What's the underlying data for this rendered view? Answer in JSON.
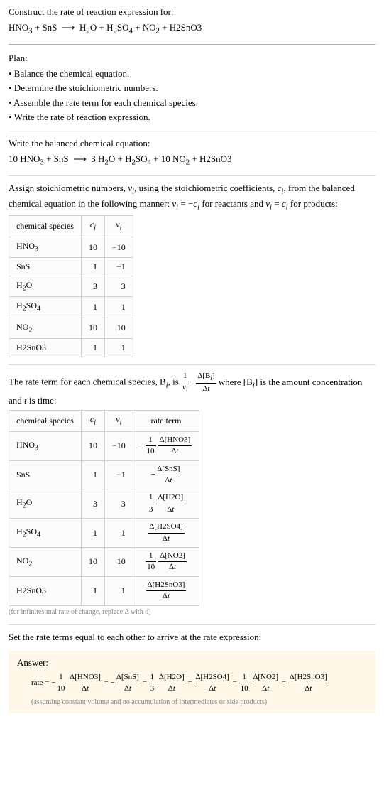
{
  "header": {
    "construct_label": "Construct the rate of reaction expression for:",
    "equation_html": "HNO<sub>3</sub> + SnS &nbsp;⟶&nbsp; H<sub>2</sub>O + H<sub>2</sub>SO<sub>4</sub> + NO<sub>2</sub> + H2SnO3"
  },
  "plan": {
    "title": "Plan:",
    "items": [
      "• Balance the chemical equation.",
      "• Determine the stoichiometric numbers.",
      "• Assemble the rate term for each chemical species.",
      "• Write the rate of reaction expression."
    ]
  },
  "balanced": {
    "title": "Write the balanced chemical equation:",
    "equation_html": "10 HNO<sub>3</sub> + SnS &nbsp;⟶&nbsp; 3 H<sub>2</sub>O + H<sub>2</sub>SO<sub>4</sub> + 10 NO<sub>2</sub> + H2SnO3"
  },
  "stoich": {
    "intro_html": "Assign stoichiometric numbers, <i>ν<sub>i</sub></i>, using the stoichiometric coefficients, <i>c<sub>i</sub></i>, from the balanced chemical equation in the following manner: <i>ν<sub>i</sub></i> = −<i>c<sub>i</sub></i> for reactants and <i>ν<sub>i</sub></i> = <i>c<sub>i</sub></i> for products:",
    "headers": {
      "species": "chemical species",
      "ci": "c<sub>i</sub>",
      "vi": "ν<sub>i</sub>"
    },
    "rows": [
      {
        "species_html": "HNO<sub>3</sub>",
        "ci": "10",
        "vi": "−10"
      },
      {
        "species_html": "SnS",
        "ci": "1",
        "vi": "−1"
      },
      {
        "species_html": "H<sub>2</sub>O",
        "ci": "3",
        "vi": "3"
      },
      {
        "species_html": "H<sub>2</sub>SO<sub>4</sub>",
        "ci": "1",
        "vi": "1"
      },
      {
        "species_html": "NO<sub>2</sub>",
        "ci": "10",
        "vi": "10"
      },
      {
        "species_html": "H2SnO3",
        "ci": "1",
        "vi": "1"
      }
    ]
  },
  "rateterm": {
    "intro_pre": "The rate term for each chemical species, B",
    "intro_mid": ", is ",
    "intro_post_html": " where [B<sub><i>i</i></sub>] is the amount concentration and <i>t</i> is time:",
    "frac1_num": "1",
    "frac1_den_html": "<i>ν<sub>i</sub></i>",
    "frac2_num_html": "Δ[B<sub><i>i</i></sub>]",
    "frac2_den_html": "Δ<i>t</i>",
    "headers": {
      "species": "chemical species",
      "ci": "c<sub>i</sub>",
      "vi": "ν<sub>i</sub>",
      "rate": "rate term"
    },
    "rows": [
      {
        "species_html": "HNO<sub>3</sub>",
        "ci": "10",
        "vi": "−10",
        "rate_prefix": "−",
        "f1n": "1",
        "f1d": "10",
        "f2n": "Δ[HNO3]",
        "f2d": "Δ<i>t</i>"
      },
      {
        "species_html": "SnS",
        "ci": "1",
        "vi": "−1",
        "rate_prefix": "−",
        "f1n": "",
        "f1d": "",
        "f2n": "Δ[SnS]",
        "f2d": "Δ<i>t</i>"
      },
      {
        "species_html": "H<sub>2</sub>O",
        "ci": "3",
        "vi": "3",
        "rate_prefix": "",
        "f1n": "1",
        "f1d": "3",
        "f2n": "Δ[H2O]",
        "f2d": "Δ<i>t</i>"
      },
      {
        "species_html": "H<sub>2</sub>SO<sub>4</sub>",
        "ci": "1",
        "vi": "1",
        "rate_prefix": "",
        "f1n": "",
        "f1d": "",
        "f2n": "Δ[H2SO4]",
        "f2d": "Δ<i>t</i>"
      },
      {
        "species_html": "NO<sub>2</sub>",
        "ci": "10",
        "vi": "10",
        "rate_prefix": "",
        "f1n": "1",
        "f1d": "10",
        "f2n": "Δ[NO2]",
        "f2d": "Δ<i>t</i>"
      },
      {
        "species_html": "H2SnO3",
        "ci": "1",
        "vi": "1",
        "rate_prefix": "",
        "f1n": "",
        "f1d": "",
        "f2n": "Δ[H2SnO3]",
        "f2d": "Δ<i>t</i>"
      }
    ],
    "note": "(for infinitesimal rate of change, replace Δ with d)"
  },
  "final": {
    "title": "Set the rate terms equal to each other to arrive at the rate expression:"
  },
  "answer": {
    "label": "Answer:",
    "rate_label": "rate = ",
    "terms": [
      {
        "prefix": "−",
        "f1n": "1",
        "f1d": "10",
        "f2n": "Δ[HNO3]",
        "f2d": "Δ<i>t</i>"
      },
      {
        "prefix": "= −",
        "f1n": "",
        "f1d": "",
        "f2n": "Δ[SnS]",
        "f2d": "Δ<i>t</i>"
      },
      {
        "prefix": "= ",
        "f1n": "1",
        "f1d": "3",
        "f2n": "Δ[H2O]",
        "f2d": "Δ<i>t</i>"
      },
      {
        "prefix": "= ",
        "f1n": "",
        "f1d": "",
        "f2n": "Δ[H2SO4]",
        "f2d": "Δ<i>t</i>"
      },
      {
        "prefix": "= ",
        "f1n": "1",
        "f1d": "10",
        "f2n": "Δ[NO2]",
        "f2d": "Δ<i>t</i>"
      },
      {
        "prefix": "= ",
        "f1n": "",
        "f1d": "",
        "f2n": "Δ[H2SnO3]",
        "f2d": "Δ<i>t</i>"
      }
    ],
    "note": "(assuming constant volume and no accumulation of intermediates or side products)"
  },
  "colors": {
    "bg": "#ffffff",
    "text": "#000000",
    "rule_light": "#d8d8d8",
    "rule_heavy": "#b0b0b0",
    "cell_bg": "#fbfbfb",
    "cell_border": "#d0d0d0",
    "note": "#888888",
    "answer_bg": "#fff8e8"
  },
  "fonts": {
    "body_pt": 13,
    "table_pt": 12,
    "note_pt": 10,
    "frac_pt": 11
  }
}
